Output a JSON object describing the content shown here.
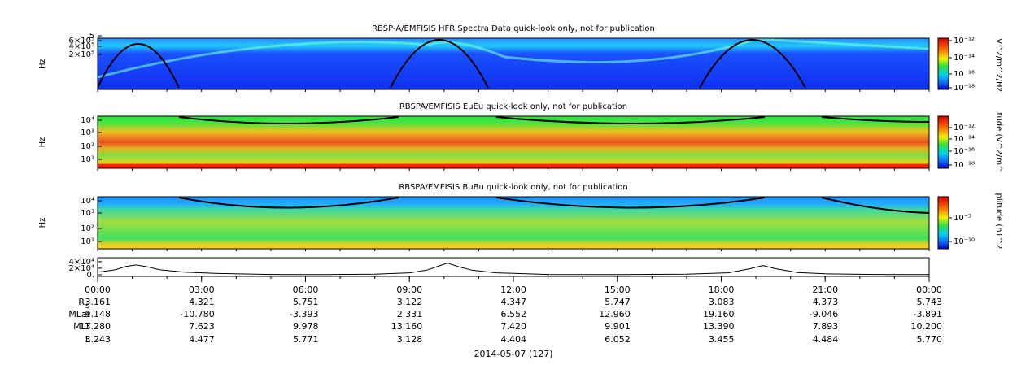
{
  "panels": [
    {
      "title": "RBSP-A/EMFISIS  HFR Spectra Data quick-look only, not for publication",
      "ylabel": "Hz",
      "yticks": [
        "5",
        "6×10⁵",
        "4×10⁵",
        "2×10⁵"
      ],
      "colorbar": {
        "label": "V^2/m^2/Hz",
        "ticks": [
          "10⁻¹²",
          "10⁻¹⁴",
          "10⁻¹⁶",
          "10⁻¹⁸"
        ]
      }
    },
    {
      "title": "RBSPA/EMFISIS  EuEu quick-look only, not for publication",
      "ylabel": "Hz",
      "yticks": [
        "10⁴",
        "10³",
        "10²",
        "10¹"
      ],
      "colorbar": {
        "label": "tude (V^2/m^",
        "ticks": [
          "10⁻¹²",
          "10⁻¹⁴",
          "10⁻¹⁶",
          "10⁻¹⁸"
        ]
      }
    },
    {
      "title": "RBSPA/EMFISIS  BuBu quick-look only, not for publication",
      "ylabel": "Hz",
      "yticks": [
        "10⁴",
        "10³",
        "10²",
        "10¹"
      ],
      "colorbar": {
        "label": "plitude (nT^2",
        "ticks": [
          "10⁻⁵",
          "10⁻¹⁰"
        ]
      }
    }
  ],
  "line_panel": {
    "ylim": [
      -5000,
      52000
    ],
    "yticks": [
      {
        "value": 40000,
        "label": "4×10⁴"
      },
      {
        "value": 20000,
        "label": "2×10⁴"
      },
      {
        "value": 0,
        "label": "0."
      }
    ],
    "x": [
      0,
      0.5,
      0.8,
      1.1,
      1.4,
      1.8,
      2.5,
      3.5,
      5,
      6.5,
      8,
      9,
      9.5,
      9.8,
      10.1,
      10.4,
      10.8,
      11.5,
      13,
      15,
      17,
      18.2,
      18.8,
      19.2,
      19.6,
      20.2,
      21,
      22.5,
      24
    ],
    "y": [
      8000,
      15000,
      25000,
      30000,
      25000,
      15000,
      8000,
      4000,
      1000,
      500,
      2000,
      6000,
      14000,
      25000,
      36000,
      25000,
      14000,
      6000,
      1000,
      500,
      2000,
      6000,
      18000,
      28000,
      18000,
      7000,
      3000,
      1000,
      500
    ]
  },
  "xlim": [
    0,
    24
  ],
  "xticks": [
    {
      "value": 0,
      "label": "00:00"
    },
    {
      "value": 3,
      "label": "03:00"
    },
    {
      "value": 6,
      "label": "06:00"
    },
    {
      "value": 9,
      "label": "09:00"
    },
    {
      "value": 12,
      "label": "12:00"
    },
    {
      "value": 15,
      "label": "15:00"
    },
    {
      "value": 18,
      "label": "18:00"
    },
    {
      "value": 21,
      "label": "21:00"
    },
    {
      "value": 24,
      "label": "00:00"
    }
  ],
  "ephemeris": [
    {
      "label": "R",
      "sub": "s",
      "values": [
        "3.161",
        "4.321",
        "5.751",
        "3.122",
        "4.347",
        "5.747",
        "3.083",
        "4.373",
        "5.743"
      ]
    },
    {
      "label": "MLat",
      "values": [
        "9.148",
        "-10.780",
        "-3.393",
        "2.331",
        "6.552",
        "12.960",
        "19.160",
        "-9.046",
        "-3.891"
      ]
    },
    {
      "label": "MLT",
      "values": [
        "13.280",
        "7.623",
        "9.978",
        "13.160",
        "7.420",
        "9.901",
        "13.390",
        "7.893",
        "10.200"
      ]
    },
    {
      "label": "L",
      "values": [
        "3.243",
        "4.477",
        "5.771",
        "3.128",
        "4.404",
        "6.052",
        "3.455",
        "4.484",
        "5.770"
      ]
    }
  ],
  "date": "2014-05-07 (127)"
}
